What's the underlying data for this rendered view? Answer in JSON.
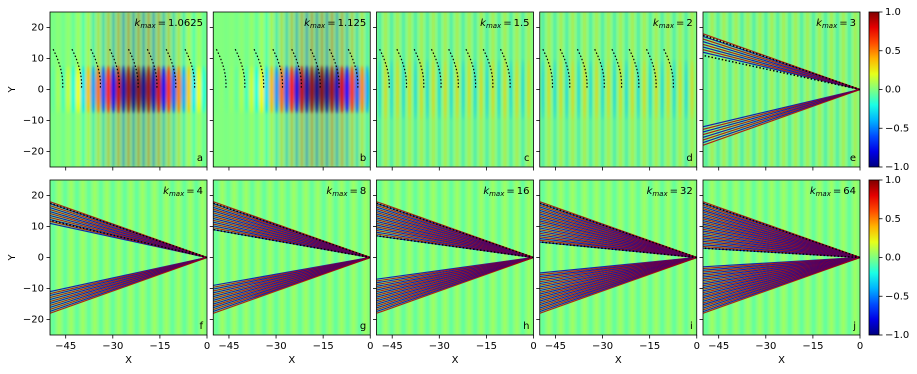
{
  "chart_data": {
    "type": "heatmap",
    "colormap": "jet",
    "xlabel": "X",
    "ylabel": "Y",
    "xlim": [
      -50,
      0
    ],
    "xticks": [
      {
        "value": -45,
        "label": "−45"
      },
      {
        "value": -30,
        "label": "−30"
      },
      {
        "value": -15,
        "label": "−15"
      },
      0
    ],
    "ylim": [
      -25,
      25
    ],
    "yticks": [
      {
        "value": -20,
        "label": "−20"
      },
      {
        "value": -10,
        "label": "−10"
      },
      0,
      10,
      20
    ],
    "clim": [
      -1,
      1
    ],
    "cticks": [
      {
        "value": -1,
        "label": "−1.0"
      },
      {
        "value": -0.5,
        "label": "−0.5"
      },
      {
        "value": 0,
        "label": "0.0"
      },
      {
        "value": 0.5,
        "label": "0.5"
      },
      {
        "value": 1,
        "label": "1.0"
      }
    ],
    "k_symbol": "k",
    "k_subscript": "max",
    "relation": "=",
    "panels": [
      {
        "k_max": 1.0625,
        "letter": "a"
      },
      {
        "k_max": 1.125,
        "letter": "b"
      },
      {
        "k_max": 1.5,
        "letter": "c"
      },
      {
        "k_max": 2,
        "letter": "d"
      },
      {
        "k_max": 3,
        "letter": "e"
      },
      {
        "k_max": 4,
        "letter": "f"
      },
      {
        "k_max": 8,
        "letter": "g"
      },
      {
        "k_max": 16,
        "letter": "h"
      },
      {
        "k_max": 32,
        "letter": "i"
      },
      {
        "k_max": 64,
        "letter": "j"
      }
    ]
  }
}
